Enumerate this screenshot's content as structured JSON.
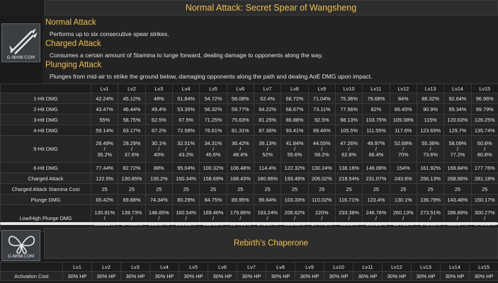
{
  "skill1": {
    "title": "Normal Attack: Secret Spear of Wangsheng",
    "logo": "G-NHW.COM",
    "sections": [
      {
        "heading": "Normal Attack",
        "text": "Performs up to six consecutive spear strikes."
      },
      {
        "heading": "Charged Attack",
        "text": "Consumes a certain amount of Stamina to lunge forward, dealing damage to opponents along the way."
      },
      {
        "heading": "Plunging Attack",
        "text": "Plunges from mid-air to strike the ground below, damaging opponents along the path and dealing AoE DMG upon impact."
      }
    ],
    "levels": [
      "Lv1",
      "Lv2",
      "Lv3",
      "Lv4",
      "Lv5",
      "Lv6",
      "Lv7",
      "Lv8",
      "Lv9",
      "Lv10",
      "Lv11",
      "Lv12",
      "Lv13",
      "Lv14",
      "Lv15"
    ],
    "rows": [
      {
        "label": "1-Hit DMG",
        "values": [
          "42.24%",
          "45.12%",
          "48%",
          "51.84%",
          "54.72%",
          "58.08%",
          "62.4%",
          "66.72%",
          "71.04%",
          "75.36%",
          "79.68%",
          "84%",
          "88.32%",
          "92.64%",
          "96.96%"
        ]
      },
      {
        "label": "2-Hit DMG",
        "values": [
          "43.47%",
          "46.44%",
          "49.4%",
          "53.35%",
          "56.32%",
          "59.77%",
          "64.22%",
          "68.67%",
          "73.11%",
          "77.56%",
          "82%",
          "86.45%",
          "90.9%",
          "95.34%",
          "99.79%"
        ]
      },
      {
        "label": "3-Hit DMG",
        "values": [
          "55%",
          "58.75%",
          "62.5%",
          "67.5%",
          "71.25%",
          "75.63%",
          "81.25%",
          "86.88%",
          "92.5%",
          "98.13%",
          "103.75%",
          "109.38%",
          "115%",
          "120.63%",
          "126.25%"
        ]
      },
      {
        "label": "4-Hit DMG",
        "values": [
          "59.14%",
          "63.17%",
          "67.2%",
          "72.58%",
          "76.61%",
          "81.31%",
          "87.36%",
          "93.41%",
          "99.46%",
          "105.5%",
          "111.55%",
          "117.6%",
          "123.65%",
          "129.7%",
          "135.74%"
        ]
      },
      {
        "label": "5-Hit DMG",
        "split": true,
        "top": [
          "26.49%",
          "28.29%",
          "30.1%",
          "32.51%",
          "34.31%",
          "36.42%",
          "39.13%",
          "41.84%",
          "44.55%",
          "47.26%",
          "49.97%",
          "52.68%",
          "55.38%",
          "58.09%",
          "60.8%"
        ],
        "bottom": [
          "35.2%",
          "37.6%",
          "40%",
          "43.2%",
          "45.6%",
          "48.4%",
          "52%",
          "55.6%",
          "59.2%",
          "62.8%",
          "66.4%",
          "70%",
          "73.6%",
          "77.2%",
          "80.8%"
        ]
      },
      {
        "label": "6-Hit DMG",
        "values": [
          "77.44%",
          "82.72%",
          "88%",
          "95.04%",
          "100.32%",
          "106.48%",
          "114.4%",
          "122.32%",
          "130.24%",
          "138.16%",
          "146.08%",
          "154%",
          "161.92%",
          "169.84%",
          "177.76%"
        ]
      },
      {
        "label": "Charged Attack",
        "values": [
          "122.5%",
          "130.85%",
          "139.2%",
          "150.34%",
          "158.69%",
          "168.43%",
          "180.96%",
          "193.49%",
          "206.02%",
          "218.54%",
          "231.07%",
          "243.6%",
          "256.13%",
          "268.66%",
          "281.18%"
        ]
      },
      {
        "label": "Charged Attack Stamina Cost",
        "values": [
          "25",
          "25",
          "25",
          "25",
          "25",
          "25",
          "25",
          "25",
          "25",
          "25",
          "25",
          "25",
          "25",
          "25",
          "25"
        ]
      },
      {
        "label": "Plunge DMG",
        "values": [
          "65.42%",
          "69.88%",
          "74.34%",
          "80.29%",
          "84.75%",
          "89.95%",
          "96.64%",
          "103.33%",
          "110.02%",
          "116.71%",
          "123.4%",
          "130.1%",
          "136.79%",
          "143.48%",
          "150.17%"
        ]
      },
      {
        "label": "Low/High Plunge DMG",
        "split": true,
        "top": [
          "130.81%",
          "139.73%",
          "148.65%",
          "160.54%",
          "169.46%",
          "179.86%",
          "193.24%",
          "206.62%",
          "220%",
          "233.38%",
          "246.76%",
          "260.13%",
          "273.51%",
          "286.89%",
          "300.27%"
        ],
        "bottom": [
          "163.39%",
          "174.53%",
          "185.67%",
          "200.52%",
          "211.66%",
          "224.66%",
          "241.37%",
          "258.08%",
          "274.79%",
          "291.5%",
          "308.21%",
          "324.92%",
          "341.63%",
          "358.34%",
          "375.05%"
        ]
      }
    ],
    "slash": "/"
  },
  "skill2": {
    "title": "Rebirth's Chaperone",
    "logo": "G-NHW.COM",
    "levels": [
      "Lv1",
      "Lv2",
      "Lv3",
      "Lv4",
      "Lv5",
      "Lv6",
      "Lv7",
      "Lv8",
      "Lv9",
      "Lv10",
      "Lv11",
      "Lv12",
      "Lv13",
      "Lv14",
      "Lv15"
    ],
    "rows": [
      {
        "label": "Activation Cost",
        "values": [
          "30% HP",
          "30% HP",
          "30% HP",
          "30% HP",
          "30% HP",
          "30% HP",
          "30% HP",
          "30% HP",
          "30% HP",
          "30% HP",
          "30% HP",
          "30% HP",
          "30% HP",
          "30% HP",
          "30% HP"
        ]
      }
    ]
  },
  "colors": {
    "accent": "#f0c050",
    "background": "#1a1a1a"
  }
}
